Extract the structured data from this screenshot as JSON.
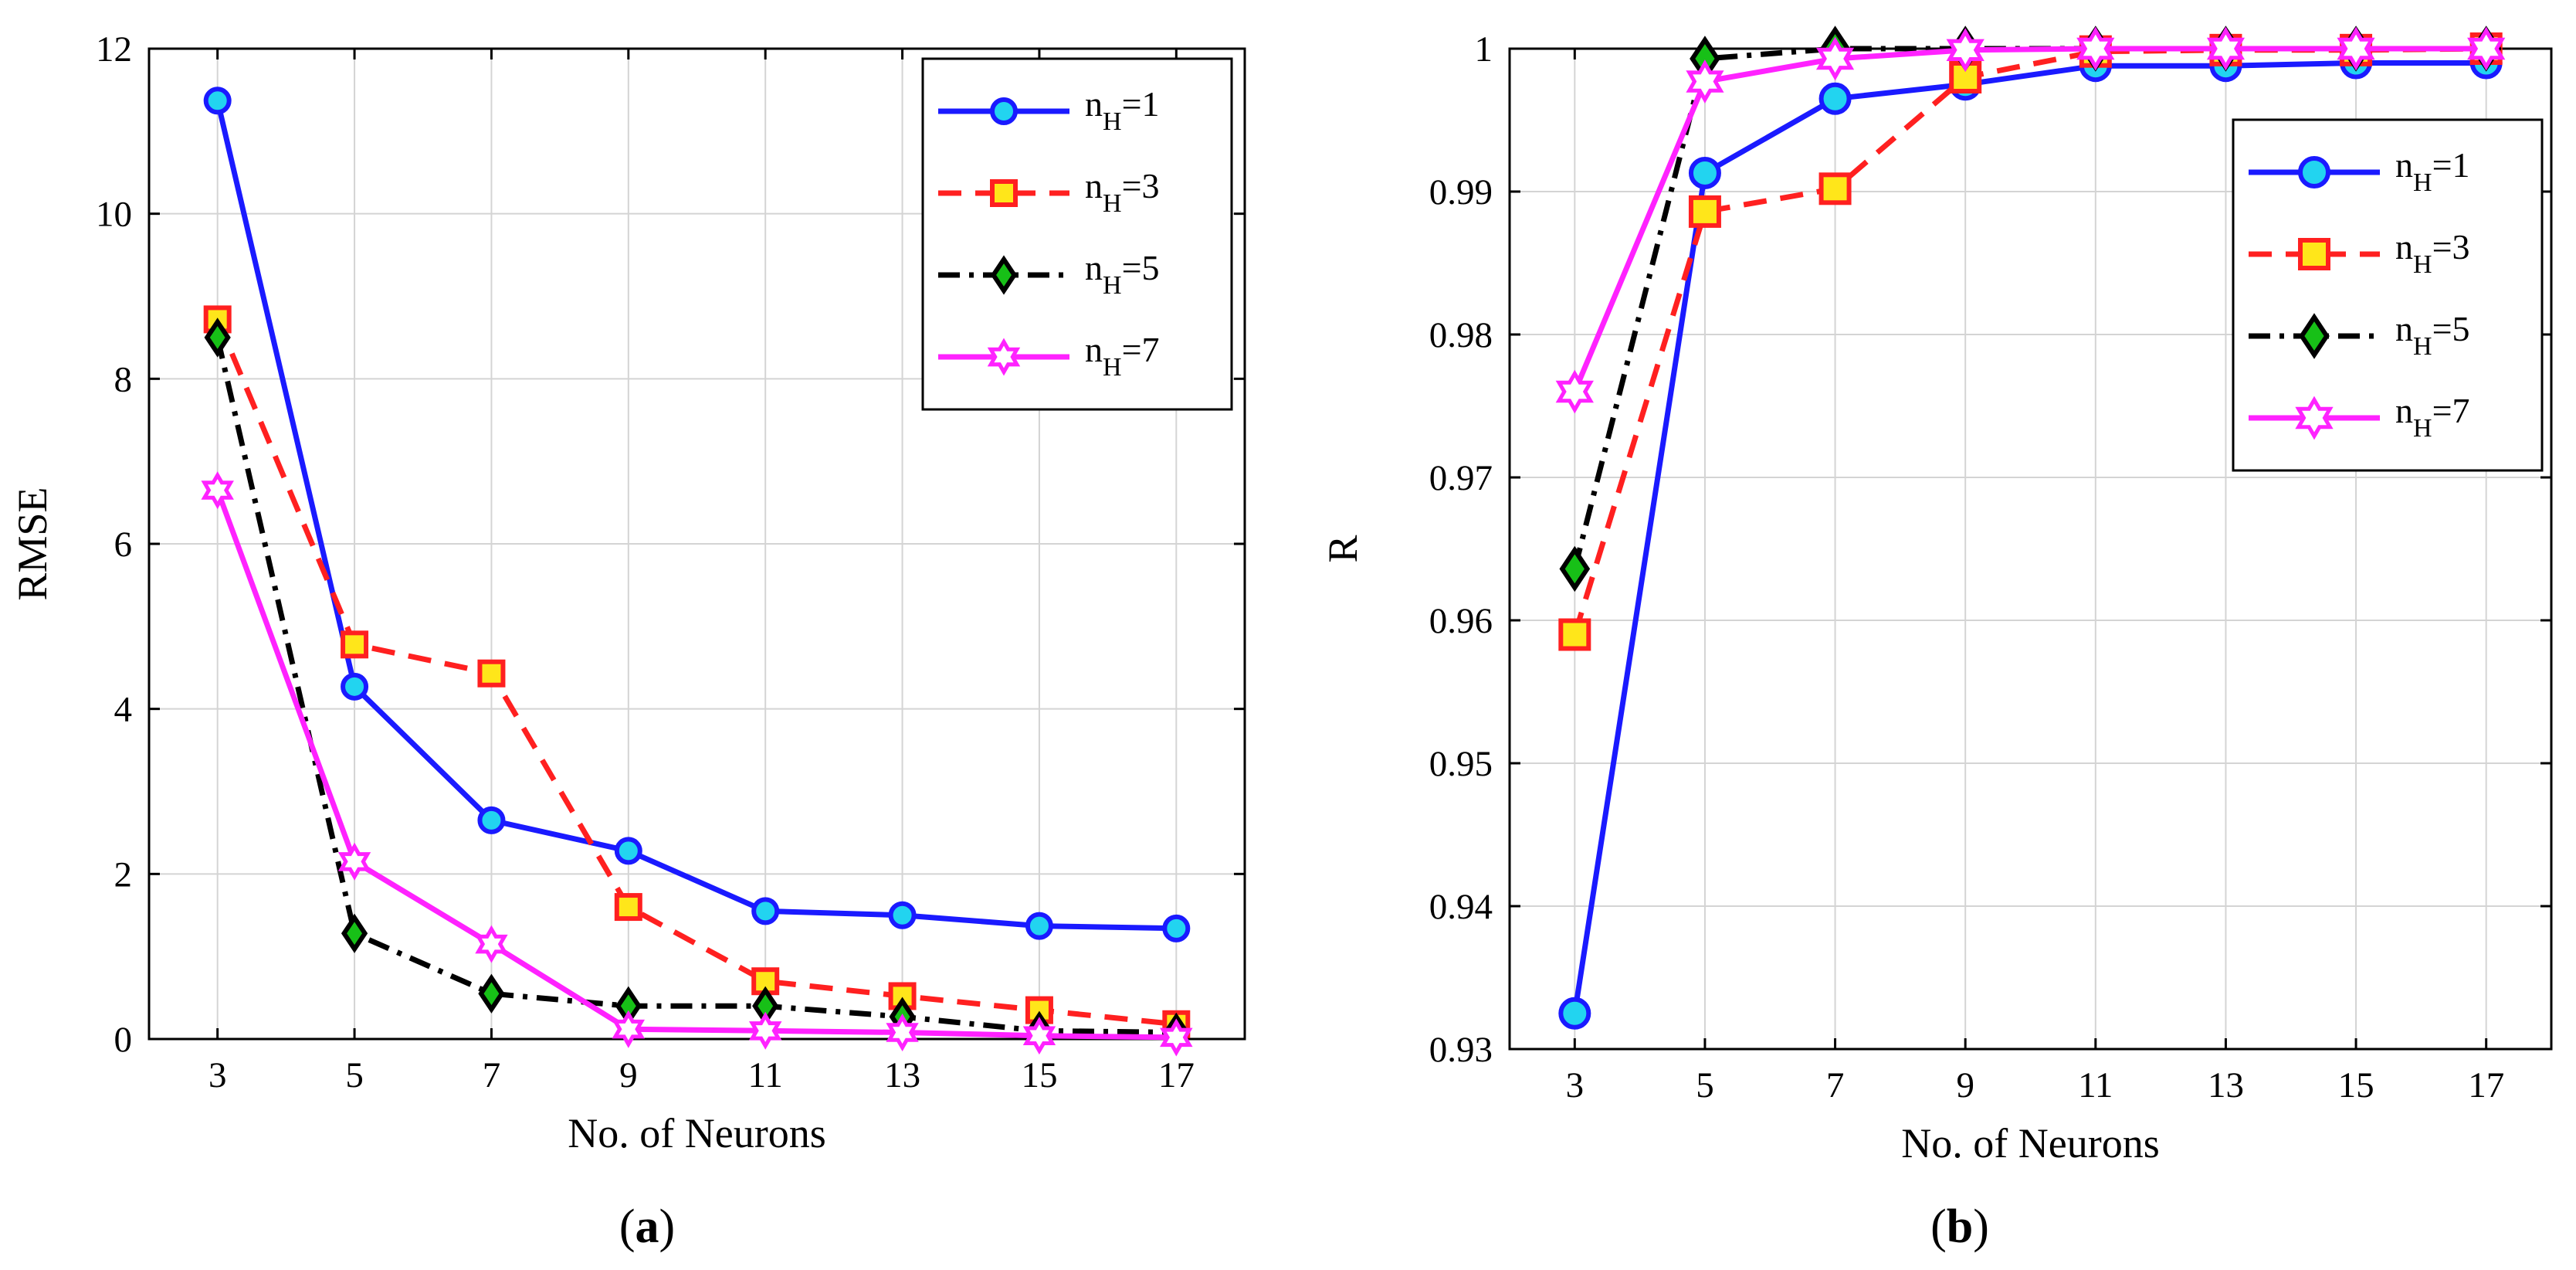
{
  "figure": {
    "left_caption": "(a)",
    "right_caption": "(b)",
    "left_caption_letter": "a",
    "right_caption_letter": "b"
  },
  "chart_data": [
    {
      "type": "line",
      "panel": "a",
      "title": "",
      "xlabel": "No. of Neurons",
      "ylabel": "RMSE",
      "x": [
        3,
        5,
        7,
        9,
        11,
        13,
        15,
        17
      ],
      "x_ticks": [
        "3",
        "5",
        "7",
        "9",
        "11",
        "13",
        "15",
        "17"
      ],
      "y_ticks": [
        "0",
        "2",
        "4",
        "6",
        "8",
        "10",
        "12"
      ],
      "xlim": [
        2,
        18
      ],
      "ylim": [
        0,
        12
      ],
      "grid": true,
      "legend_position": "top-right",
      "series": [
        {
          "name": "n_H=1",
          "name_base": "n",
          "name_sub": "H",
          "name_rest": "=1",
          "color": "#1a1aff",
          "marker_fill": "#22d4f0",
          "marker": "circle",
          "dash": "solid",
          "values": [
            11.37,
            4.27,
            2.65,
            2.28,
            1.55,
            1.5,
            1.37,
            1.34
          ]
        },
        {
          "name": "n_H=3",
          "name_base": "n",
          "name_sub": "H",
          "name_rest": "=3",
          "color": "#ff2020",
          "marker_fill": "#ffe61a",
          "marker": "square",
          "dash": "dashed",
          "values": [
            8.72,
            4.78,
            4.43,
            1.6,
            0.7,
            0.52,
            0.35,
            0.18
          ]
        },
        {
          "name": "n_H=5",
          "name_base": "n",
          "name_sub": "H",
          "name_rest": "=5",
          "color": "#000000",
          "marker_fill": "#17c017",
          "marker": "diamond",
          "dash": "dashdot",
          "values": [
            8.5,
            1.28,
            0.55,
            0.4,
            0.4,
            0.27,
            0.1,
            0.08
          ]
        },
        {
          "name": "n_H=7",
          "name_base": "n",
          "name_sub": "H",
          "name_rest": "=7",
          "color": "#ff22ff",
          "marker_fill": "#ffffff",
          "marker": "hexagram",
          "dash": "solid",
          "values": [
            6.65,
            2.15,
            1.15,
            0.12,
            0.1,
            0.08,
            0.04,
            0.02
          ]
        }
      ]
    },
    {
      "type": "line",
      "panel": "b",
      "title": "",
      "xlabel": "No. of Neurons",
      "ylabel": "R",
      "x": [
        3,
        5,
        7,
        9,
        11,
        13,
        15,
        17
      ],
      "x_ticks": [
        "3",
        "5",
        "7",
        "9",
        "11",
        "13",
        "15",
        "17"
      ],
      "y_ticks": [
        "0.93",
        "0.94",
        "0.95",
        "0.96",
        "0.97",
        "0.98",
        "0.99",
        "1"
      ],
      "xlim": [
        2,
        18
      ],
      "ylim": [
        0.93,
        1.0
      ],
      "grid": true,
      "legend_position": "top-right",
      "series": [
        {
          "name": "n_H=1",
          "name_base": "n",
          "name_sub": "H",
          "name_rest": "=1",
          "color": "#1a1aff",
          "marker_fill": "#22d4f0",
          "marker": "circle",
          "dash": "solid",
          "values": [
            0.9325,
            0.9913,
            0.9965,
            0.9975,
            0.9988,
            0.9988,
            0.999,
            0.999
          ]
        },
        {
          "name": "n_H=3",
          "name_base": "n",
          "name_sub": "H",
          "name_rest": "=3",
          "color": "#ff2020",
          "marker_fill": "#ffe61a",
          "marker": "square",
          "dash": "dashed",
          "values": [
            0.959,
            0.9886,
            0.9902,
            0.998,
            0.9998,
            0.9999,
            0.9999,
            1.0
          ]
        },
        {
          "name": "n_H=5",
          "name_base": "n",
          "name_sub": "H",
          "name_rest": "=5",
          "color": "#000000",
          "marker_fill": "#17c017",
          "marker": "diamond",
          "dash": "dashdot",
          "values": [
            0.9636,
            0.9993,
            1.0,
            1.0,
            1.0,
            1.0,
            1.0,
            1.0
          ]
        },
        {
          "name": "n_H=7",
          "name_base": "n",
          "name_sub": "H",
          "name_rest": "=7",
          "color": "#ff22ff",
          "marker_fill": "#ffffff",
          "marker": "hexagram",
          "dash": "solid",
          "values": [
            0.976,
            0.9977,
            0.9993,
            0.9999,
            1.0,
            1.0,
            1.0,
            1.0
          ]
        }
      ]
    }
  ]
}
